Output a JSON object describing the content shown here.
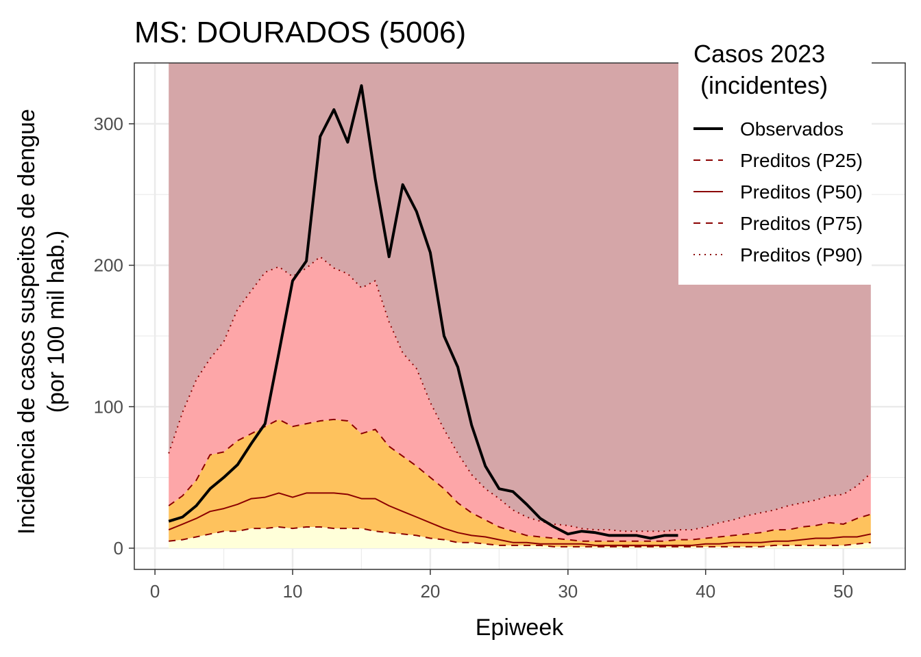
{
  "chart_data": {
    "type": "area",
    "title": "MS: DOURADOS (5006)",
    "xlabel": "Epiweek",
    "ylabel_lines": [
      "Incidência de casos suspeitos de dengue",
      "(por 100 mil hab.)"
    ],
    "xlim": [
      -1.5,
      54.5
    ],
    "ylim": [
      -15,
      343
    ],
    "x_ticks": [
      0,
      10,
      20,
      30,
      40,
      50
    ],
    "y_ticks": [
      0,
      100,
      200,
      300
    ],
    "grid": true,
    "legend_position": "top-right",
    "legend": {
      "title_lines": [
        "Casos 2023",
        " (incidentes)"
      ],
      "entries": [
        {
          "label": "Observados",
          "color": "#000000",
          "dash": "solid",
          "width": 4
        },
        {
          "label": "Preditos (P25)",
          "color": "#8B0000",
          "dash": "10 8",
          "width": 2
        },
        {
          "label": "Preditos (P50)",
          "color": "#8B0000",
          "dash": "solid",
          "width": 2
        },
        {
          "label": "Preditos (P75)",
          "color": "#8B0000",
          "dash": "10 8",
          "width": 2
        },
        {
          "label": "Preditos (P90)",
          "color": "#8B0000",
          "dash": "2 6",
          "width": 2
        }
      ]
    },
    "band_colors": {
      "below_p25": "#FFFFD9",
      "p25_to_p75": "#FEC25D",
      "p75_to_p90": "#FDA6A8",
      "above_p90": "#D5A6A8"
    },
    "band_top": 343,
    "x": [
      1,
      2,
      3,
      4,
      5,
      6,
      7,
      8,
      9,
      10,
      11,
      12,
      13,
      14,
      15,
      16,
      17,
      18,
      19,
      20,
      21,
      22,
      23,
      24,
      25,
      26,
      27,
      28,
      29,
      30,
      31,
      32,
      33,
      34,
      35,
      36,
      37,
      38,
      39,
      40,
      41,
      42,
      43,
      44,
      45,
      46,
      47,
      48,
      49,
      50,
      51,
      52
    ],
    "series": [
      {
        "name": "Preditos (P25)",
        "values": [
          5,
          6,
          8,
          10,
          12,
          12,
          14,
          14,
          15,
          14,
          15,
          15,
          14,
          14,
          14,
          12,
          11,
          10,
          9,
          7,
          6,
          4,
          4,
          3,
          2,
          2,
          2,
          2,
          1,
          1,
          1,
          1,
          1,
          1,
          1,
          1,
          1,
          1,
          1,
          1,
          1,
          1,
          1,
          1,
          2,
          2,
          2,
          2,
          2,
          2,
          3,
          4
        ]
      },
      {
        "name": "Preditos (P50)",
        "values": [
          13,
          17,
          21,
          26,
          28,
          31,
          35,
          36,
          39,
          36,
          39,
          39,
          39,
          38,
          35,
          35,
          30,
          26,
          22,
          18,
          14,
          11,
          9,
          8,
          6,
          4,
          4,
          3,
          3,
          3,
          3,
          2,
          2,
          2,
          2,
          2,
          2,
          2,
          2,
          3,
          3,
          4,
          4,
          4,
          5,
          5,
          6,
          7,
          7,
          8,
          8,
          10
        ]
      },
      {
        "name": "Preditos (P75)",
        "values": [
          30,
          37,
          48,
          66,
          68,
          76,
          81,
          86,
          91,
          86,
          88,
          90,
          91,
          90,
          81,
          84,
          72,
          65,
          58,
          50,
          42,
          32,
          25,
          20,
          15,
          12,
          9,
          8,
          7,
          6,
          5,
          5,
          5,
          5,
          5,
          5,
          5,
          6,
          6,
          7,
          8,
          9,
          10,
          11,
          13,
          13,
          15,
          16,
          18,
          17,
          21,
          24
        ]
      },
      {
        "name": "Preditos (P90)",
        "values": [
          67,
          96,
          119,
          134,
          146,
          169,
          182,
          195,
          199,
          192,
          198,
          206,
          198,
          194,
          184,
          189,
          160,
          138,
          127,
          103,
          84,
          67,
          52,
          42,
          35,
          27,
          22,
          19,
          17,
          16,
          14,
          13,
          13,
          12,
          12,
          12,
          12,
          13,
          13,
          15,
          18,
          20,
          23,
          25,
          27,
          30,
          32,
          34,
          37,
          38,
          44,
          53
        ]
      },
      {
        "name": "Observados",
        "x": [
          1,
          2,
          3,
          4,
          5,
          6,
          7,
          8,
          9,
          10,
          11,
          12,
          13,
          14,
          15,
          16,
          17,
          18,
          19,
          20,
          21,
          22,
          23,
          24,
          25,
          26,
          27,
          28,
          29,
          30,
          31,
          32,
          33,
          34,
          35,
          36,
          37,
          38
        ],
        "values": [
          19,
          22,
          30,
          42,
          50,
          59,
          74,
          88,
          138,
          189,
          203,
          291,
          310,
          287,
          327,
          261,
          206,
          257,
          238,
          209,
          150,
          128,
          87,
          58,
          42,
          40,
          31,
          21,
          15,
          10,
          12,
          11,
          9,
          9,
          9,
          7,
          9,
          9
        ]
      }
    ]
  }
}
